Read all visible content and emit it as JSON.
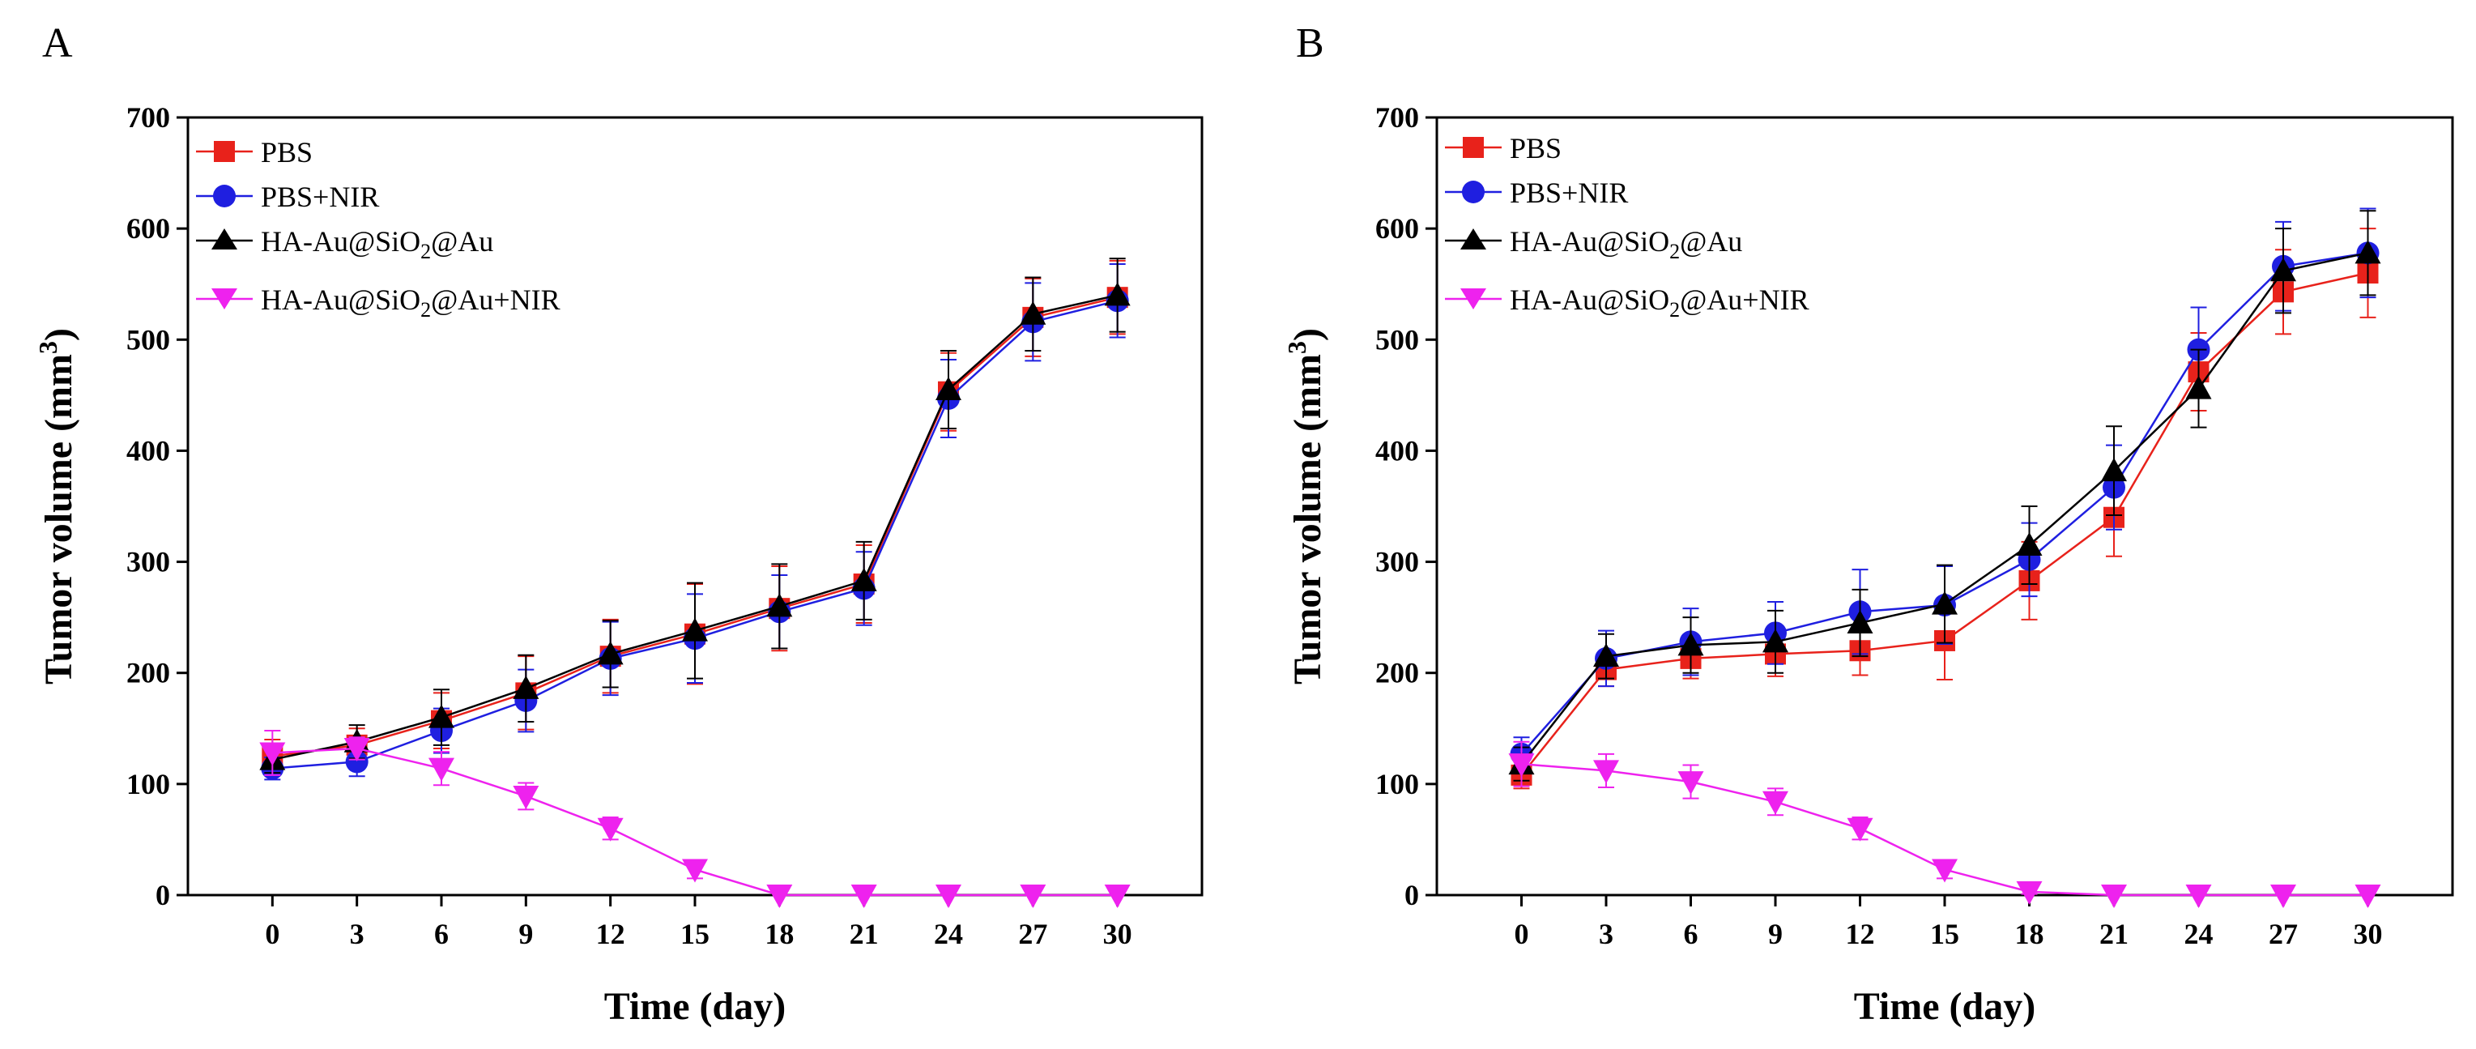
{
  "chart_data": [
    {
      "type": "line",
      "panel": "A",
      "xlabel": "Time (day)",
      "ylabel": "Tumor volume (mm",
      "ylabel_sup": "3",
      "ylabel_end": ")",
      "xlim": [
        -3,
        33
      ],
      "ylim": [
        0,
        700
      ],
      "xticks": [
        0,
        3,
        6,
        9,
        12,
        15,
        18,
        21,
        24,
        27,
        30
      ],
      "yticks": [
        0,
        100,
        200,
        300,
        400,
        500,
        600,
        700
      ],
      "grid": false,
      "legend": "top-left",
      "x": [
        0,
        3,
        6,
        9,
        12,
        15,
        18,
        21,
        24,
        27,
        30
      ],
      "series": [
        {
          "name": "PBS",
          "color": "#e8221b",
          "marker": "square",
          "values": [
            125,
            135,
            157,
            182,
            215,
            235,
            258,
            280,
            453,
            520,
            538
          ],
          "errors": [
            15,
            15,
            25,
            33,
            33,
            45,
            38,
            35,
            35,
            35,
            33
          ]
        },
        {
          "name": "PBS+NIR",
          "color": "#1f1fe0",
          "marker": "circle",
          "values": [
            114,
            120,
            148,
            175,
            213,
            231,
            255,
            276,
            447,
            516,
            535
          ],
          "errors": [
            10,
            13,
            20,
            28,
            33,
            40,
            33,
            33,
            35,
            35,
            33
          ]
        },
        {
          "name": "HA-Au@SiO2@Au",
          "color": "#000000",
          "marker": "triangle-up",
          "values": [
            122,
            138,
            160,
            186,
            217,
            238,
            260,
            283,
            455,
            523,
            540
          ],
          "errors": [
            12,
            15,
            25,
            30,
            30,
            43,
            38,
            35,
            35,
            33,
            33
          ]
        },
        {
          "name": "HA-Au@SiO2@Au+NIR",
          "color": "#ee22ee",
          "marker": "triangle-down",
          "values": [
            128,
            132,
            114,
            89,
            60,
            23,
            0,
            0,
            0,
            0,
            0
          ],
          "errors": [
            20,
            10,
            15,
            12,
            10,
            8,
            0,
            0,
            0,
            0,
            0
          ]
        }
      ],
      "legend_entries": [
        {
          "main": "PBS"
        },
        {
          "main": "PBS+NIR"
        },
        {
          "main": "HA-Au@SiO",
          "sub": "2",
          "tail": "@Au"
        },
        {
          "main": "HA-Au@SiO",
          "sub": "2",
          "tail": "@Au+NIR"
        }
      ]
    },
    {
      "type": "line",
      "panel": "B",
      "xlabel": "Time (day)",
      "ylabel": "Tumor volume (mm",
      "ylabel_sup": "3",
      "ylabel_end": ")",
      "xlim": [
        -3,
        33
      ],
      "ylim": [
        0,
        700
      ],
      "xticks": [
        0,
        3,
        6,
        9,
        12,
        15,
        18,
        21,
        24,
        27,
        30
      ],
      "yticks": [
        0,
        100,
        200,
        300,
        400,
        500,
        600,
        700
      ],
      "grid": false,
      "legend": "top-left",
      "x": [
        0,
        3,
        6,
        9,
        12,
        15,
        18,
        21,
        24,
        27,
        30
      ],
      "series": [
        {
          "name": "PBS",
          "color": "#e8221b",
          "marker": "square",
          "values": [
            108,
            203,
            213,
            217,
            220,
            229,
            283,
            340,
            471,
            543,
            560
          ],
          "errors": [
            12,
            15,
            18,
            20,
            22,
            35,
            35,
            35,
            35,
            38,
            40
          ]
        },
        {
          "name": "PBS+NIR",
          "color": "#1f1fe0",
          "marker": "circle",
          "values": [
            127,
            213,
            228,
            236,
            255,
            261,
            302,
            367,
            491,
            566,
            578
          ],
          "errors": [
            15,
            25,
            30,
            28,
            38,
            35,
            33,
            38,
            38,
            40,
            40
          ]
        },
        {
          "name": "HA-Au@SiO2@Au",
          "color": "#000000",
          "marker": "triangle-up",
          "values": [
            118,
            215,
            225,
            228,
            245,
            262,
            315,
            382,
            456,
            562,
            578
          ],
          "errors": [
            15,
            20,
            25,
            28,
            30,
            35,
            35,
            40,
            35,
            38,
            38
          ]
        },
        {
          "name": "HA-Au@SiO2@Au+NIR",
          "color": "#ee22ee",
          "marker": "triangle-down",
          "values": [
            118,
            112,
            102,
            84,
            60,
            23,
            3,
            0,
            0,
            0,
            0
          ],
          "errors": [
            20,
            15,
            15,
            12,
            10,
            8,
            2,
            0,
            0,
            0,
            0
          ]
        }
      ],
      "legend_entries": [
        {
          "main": "PBS"
        },
        {
          "main": "PBS+NIR"
        },
        {
          "main": "HA-Au@SiO",
          "sub": "2",
          "tail": "@Au"
        },
        {
          "main": "HA-Au@SiO",
          "sub": "2",
          "tail": "@Au+NIR"
        }
      ]
    }
  ]
}
